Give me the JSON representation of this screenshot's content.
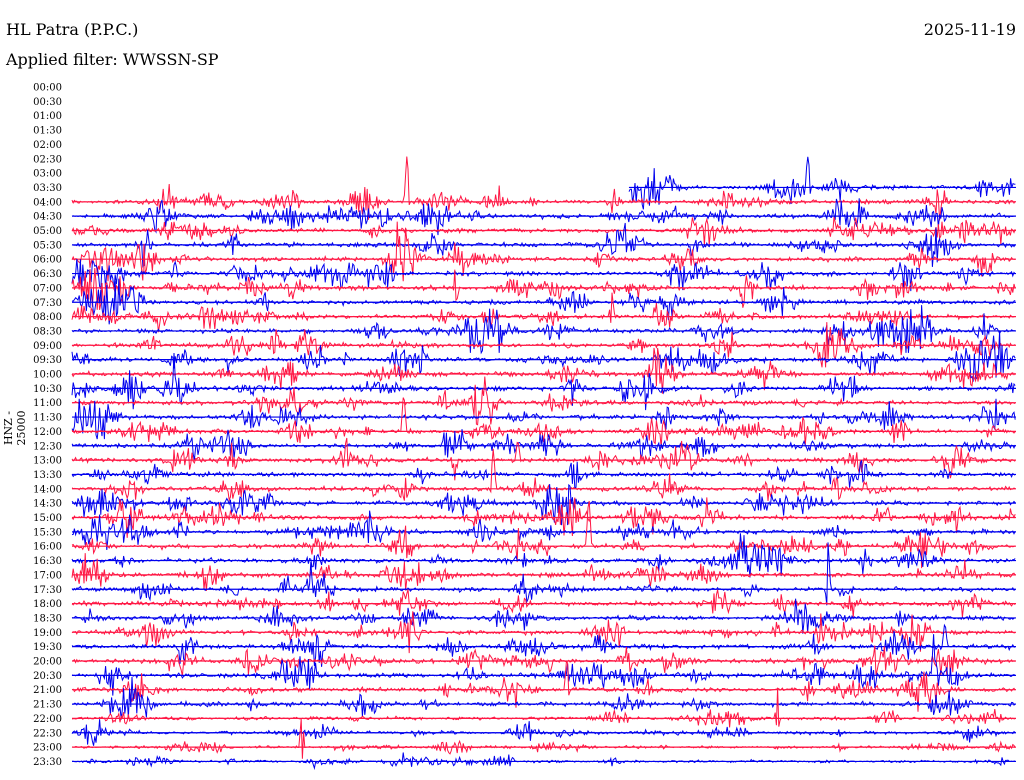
{
  "header": {
    "station": "HL Patra (P.P.C.)",
    "date": "2025-11-19",
    "filter_label": "Applied filter: WWSSN-SP"
  },
  "chart_data": {
    "type": "line",
    "title": "HL Patra (P.P.C.)",
    "subtitle": "Applied filter: WWSSN-SP",
    "ylabel": "HNZ - 25000",
    "xlabel": "",
    "rows": [
      "00:00",
      "00:30",
      "01:00",
      "01:30",
      "02:00",
      "02:30",
      "03:00",
      "03:30",
      "04:00",
      "04:30",
      "05:00",
      "05:30",
      "06:00",
      "06:30",
      "07:00",
      "07:30",
      "08:00",
      "08:30",
      "09:00",
      "09:30",
      "10:00",
      "10:30",
      "11:00",
      "11:30",
      "12:00",
      "12:30",
      "13:00",
      "13:30",
      "14:00",
      "14:30",
      "15:00",
      "15:30",
      "16:00",
      "16:30",
      "17:00",
      "17:30",
      "18:00",
      "18:30",
      "19:00",
      "19:30",
      "20:00",
      "20:30",
      "21:00",
      "21:30",
      "22:00",
      "22:30",
      "23:00",
      "23:30"
    ],
    "data_start_row": "03:30",
    "data_start_fraction": 0.59,
    "colors": [
      "#ff1744",
      "#0000ee"
    ],
    "grid": false,
    "legend": "none"
  }
}
